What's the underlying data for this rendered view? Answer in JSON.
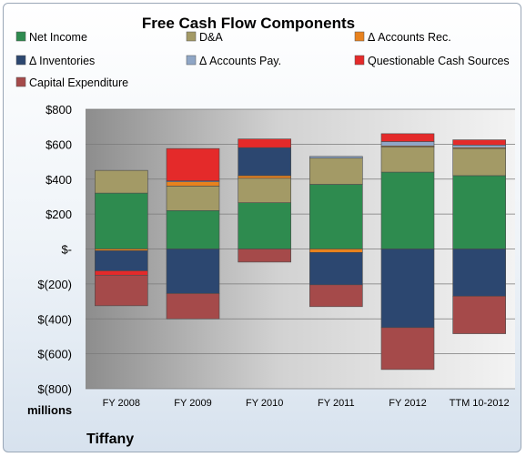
{
  "chart_data": {
    "type": "bar",
    "stacked": true,
    "title": "Free Cash Flow Components",
    "categories": [
      "FY 2008",
      "FY 2009",
      "FY 2010",
      "FY 2011",
      "FY 2012",
      "TTM 10-2012"
    ],
    "y_tick_labels": [
      "$800",
      "$600",
      "$400",
      "$200",
      "$-",
      "$(200)",
      "$(400)",
      "$(600)",
      "$(800)"
    ],
    "ylim": [
      -800,
      800
    ],
    "units_label": "millions",
    "company": "Tiffany",
    "legend_position": "top",
    "series": [
      {
        "name": "Net Income",
        "color": "#2e8b4f",
        "values": [
          320,
          220,
          265,
          370,
          440,
          420
        ]
      },
      {
        "name": "D&A",
        "color": "#a39a66",
        "values": [
          130,
          140,
          140,
          150,
          145,
          155
        ]
      },
      {
        "name": "Δ Accounts Rec.",
        "color": "#e8821e",
        "values": [
          -10,
          25,
          15,
          -20,
          5,
          5
        ]
      },
      {
        "name": "Δ Inventories",
        "color": "#2c4770",
        "values": [
          -115,
          -255,
          160,
          -185,
          -450,
          -270
        ]
      },
      {
        "name": "Δ Accounts Pay.",
        "color": "#8fa6c6",
        "values": [
          0,
          5,
          0,
          10,
          25,
          15
        ]
      },
      {
        "name": "Questionable Cash Sources",
        "color": "#e42a2a",
        "values": [
          -25,
          185,
          50,
          0,
          45,
          30
        ]
      },
      {
        "name": "Capital Expenditure",
        "color": "#a54a4a",
        "values": [
          -175,
          -145,
          -75,
          -125,
          -240,
          -215
        ]
      }
    ]
  }
}
